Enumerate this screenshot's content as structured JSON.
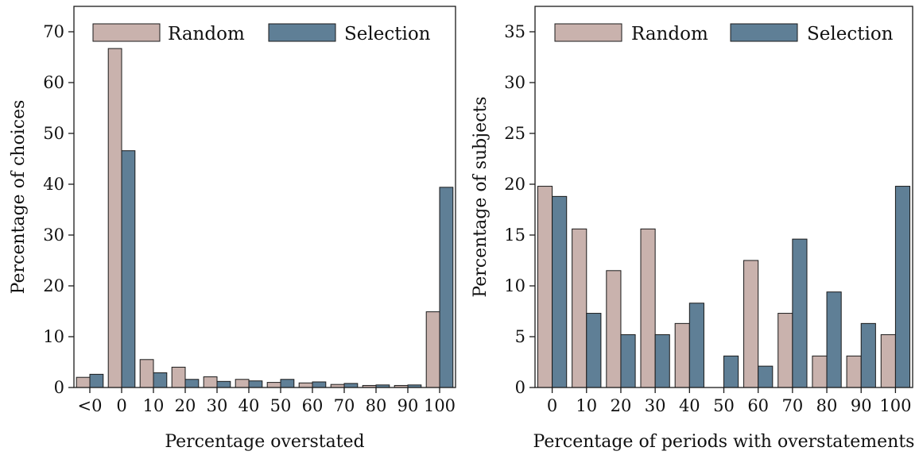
{
  "colors": {
    "random": "#c9b2ad",
    "selection": "#5f7f96",
    "stroke": "#1a1a1a"
  },
  "chart_data": [
    {
      "type": "bar",
      "xlabel": "Percentage overstated",
      "ylabel": "Percentage of choices",
      "ylim": [
        0,
        75
      ],
      "yticks": [
        0,
        10,
        20,
        30,
        40,
        50,
        60,
        70
      ],
      "categories": [
        "<0",
        "0",
        "10",
        "20",
        "30",
        "40",
        "50",
        "60",
        "70",
        "80",
        "90",
        "100"
      ],
      "legend_position": "top",
      "series": [
        {
          "name": "Random",
          "color_key": "random",
          "values": [
            2.0,
            66.7,
            5.5,
            4.0,
            2.1,
            1.6,
            1.0,
            0.9,
            0.6,
            0.4,
            0.4,
            14.9
          ]
        },
        {
          "name": "Selection",
          "color_key": "selection",
          "values": [
            2.6,
            46.6,
            2.9,
            1.6,
            1.2,
            1.3,
            1.6,
            1.1,
            0.8,
            0.5,
            0.5,
            39.4
          ]
        }
      ]
    },
    {
      "type": "bar",
      "xlabel": "Percentage of periods with overstatements",
      "ylabel": "Percentage of subjects",
      "ylim": [
        0,
        37.5
      ],
      "yticks": [
        0,
        5,
        10,
        15,
        20,
        25,
        30,
        35
      ],
      "categories": [
        "0",
        "10",
        "20",
        "30",
        "40",
        "50",
        "60",
        "70",
        "80",
        "90",
        "100"
      ],
      "legend_position": "top",
      "series": [
        {
          "name": "Random",
          "color_key": "random",
          "values": [
            19.8,
            15.6,
            11.5,
            15.6,
            6.3,
            0,
            12.5,
            7.3,
            3.1,
            3.1,
            5.2
          ]
        },
        {
          "name": "Selection",
          "color_key": "selection",
          "values": [
            18.8,
            7.3,
            5.2,
            5.2,
            8.3,
            3.1,
            2.1,
            14.6,
            9.4,
            6.3,
            19.8
          ]
        }
      ]
    }
  ]
}
